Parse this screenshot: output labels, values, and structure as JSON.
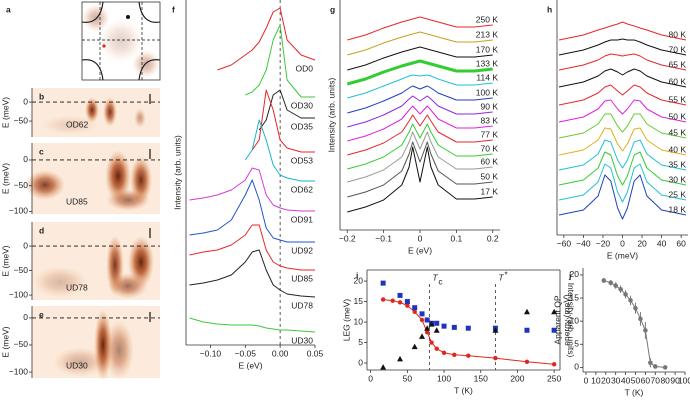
{
  "chart_data": [
    {
      "panel": "a",
      "type": "image"
    },
    {
      "panel": "b",
      "type": "image",
      "label": "OD62",
      "ylabel": "E (meV)",
      "ylim": [
        -92,
        37
      ],
      "yticks": [
        0,
        {
          "value": -50,
          "label": "−50"
        }
      ],
      "hline": 0
    },
    {
      "panel": "c",
      "type": "image",
      "label": "UD85",
      "ylabel": "E (meV)",
      "ylim": [
        -105,
        33
      ],
      "yticks": [
        0,
        {
          "value": -50,
          "label": "−50"
        },
        {
          "value": -100,
          "label": "−100"
        }
      ],
      "hline": 0
    },
    {
      "panel": "d",
      "type": "image",
      "label": "UD78",
      "ylabel": "E (meV)",
      "ylim": [
        -110,
        49
      ],
      "yticks": [
        0,
        {
          "value": -50,
          "label": "−50"
        },
        {
          "value": -100,
          "label": "−100"
        }
      ],
      "hline": 0
    },
    {
      "panel": "e",
      "type": "image",
      "label": "UD30",
      "ylabel": "E (meV)",
      "ylim": [
        -111,
        22
      ],
      "yticks": [
        0,
        {
          "value": -50,
          "label": "−50"
        },
        {
          "value": -100,
          "label": "−100"
        }
      ],
      "hline": 0
    },
    {
      "panel": "f",
      "type": "line",
      "xlabel": "E (eV)",
      "ylabel": "Intensity (arb. units)",
      "xlim": [
        -0.135,
        0.05
      ],
      "xticks": [
        {
          "value": -0.1,
          "label": "−0.10"
        },
        {
          "value": -0.05,
          "label": "−0.05"
        },
        {
          "value": 0,
          "label": "0.00"
        },
        0.05
      ],
      "ylim": [
        0,
        34.5
      ],
      "vline": 0,
      "x": [
        -0.13,
        -0.11,
        -0.09,
        -0.07,
        -0.05,
        -0.04,
        -0.03,
        -0.02,
        -0.01,
        0,
        0.01,
        0.03,
        0.05
      ],
      "series": [
        {
          "name": "OD0",
          "color": "#e8262a",
          "values": [
            null,
            null,
            27.5,
            28,
            29,
            29.5,
            30.3,
            31.7,
            33.3,
            33.7,
            30.5,
            29,
            28.5
          ]
        },
        {
          "name": "OD30",
          "color": "#3ec93e",
          "values": [
            null,
            null,
            null,
            null,
            25,
            25.3,
            26,
            27.5,
            30.5,
            32,
            26.5,
            24.8,
            24.8
          ]
        },
        {
          "name": "OD35",
          "color": "#222222",
          "values": [
            null,
            null,
            null,
            null,
            null,
            null,
            21.5,
            22.5,
            25,
            25.5,
            23.5,
            22.7,
            22.7
          ]
        },
        {
          "name": "OD53",
          "color": "#e8262a",
          "values": [
            null,
            null,
            null,
            null,
            null,
            19.5,
            20.5,
            25.5,
            23.5,
            20.5,
            19.7,
            19.3,
            19.3
          ]
        },
        {
          "name": "OD62",
          "color": "#19b3c9",
          "values": [
            null,
            null,
            null,
            null,
            18.5,
            19.5,
            22.5,
            20.5,
            18,
            17,
            16.7,
            16.4,
            16.4
          ]
        },
        {
          "name": "OD91",
          "color": "#d43cd4",
          "values": [
            14.5,
            14.7,
            15,
            15.5,
            16.5,
            17.7,
            17.5,
            15,
            14,
            13.7,
            13.5,
            13.4,
            13.4
          ]
        },
        {
          "name": "UD92",
          "color": "#2255cc",
          "values": [
            11,
            11.2,
            11.5,
            12.5,
            15,
            16.5,
            14.5,
            11.7,
            10.7,
            10.5,
            10.3,
            10.3,
            10.3
          ]
        },
        {
          "name": "UD85",
          "color": "#e8262a",
          "values": [
            9,
            9.3,
            9.5,
            10,
            11,
            12,
            12,
            9.5,
            8.3,
            7.9,
            7.7,
            7.5,
            7.5
          ]
        },
        {
          "name": "UD78",
          "color": "#222222",
          "values": [
            6,
            6.2,
            6.5,
            7,
            8.3,
            9.3,
            9.5,
            7.5,
            6,
            5.5,
            5.1,
            4.9,
            4.8
          ]
        },
        {
          "name": "UD30",
          "color": "#3ec93e",
          "values": [
            2.7,
            2.3,
            2.1,
            2,
            2,
            2,
            1.9,
            1.7,
            1.6,
            1.5,
            1.5,
            1.4,
            1.3
          ]
        }
      ]
    },
    {
      "panel": "g",
      "type": "line",
      "xlabel": "E (eV)",
      "ylabel": "Intensity (arb. units)",
      "xlim": [
        -0.22,
        0.22
      ],
      "xticks": [
        {
          "value": -0.2,
          "label": "−0.2"
        },
        {
          "value": -0.1,
          "label": "−0.1"
        },
        0,
        0.1,
        0.2
      ],
      "ylim": [
        0,
        23
      ],
      "x": [
        -0.2,
        -0.15,
        -0.1,
        -0.05,
        -0.03,
        -0.02,
        0,
        0.02,
        0.03,
        0.05,
        0.1,
        0.15,
        0.2
      ],
      "series": [
        {
          "name": "250 K",
          "color": "#e8262a",
          "values": [
            19,
            19.5,
            20.2,
            20.8,
            21,
            21.1,
            21.3,
            21.1,
            21,
            20.8,
            20.3,
            20.3,
            20.5
          ]
        },
        {
          "name": "213 K",
          "color": "#c8a020",
          "values": [
            17.5,
            18,
            18.7,
            19.3,
            19.5,
            19.6,
            19.8,
            19.6,
            19.5,
            19.3,
            18.8,
            18.8,
            19
          ]
        },
        {
          "name": "170 K",
          "color": "#111111",
          "values": [
            16,
            16.5,
            17.2,
            17.8,
            18,
            18.1,
            18.3,
            18.1,
            18,
            17.8,
            17.3,
            17.3,
            17.5
          ]
        },
        {
          "name": "133 K",
          "color": "#33cc33",
          "width": 3,
          "values": [
            14.6,
            15.1,
            15.8,
            16.4,
            16.6,
            16.7,
            16.9,
            16.7,
            16.6,
            16.4,
            15.9,
            15.9,
            16.1
          ]
        },
        {
          "name": "114 K",
          "color": "#22c0d0",
          "values": [
            13.2,
            13.7,
            14.4,
            15.1,
            15.4,
            15.5,
            15.4,
            15.5,
            15.4,
            15.1,
            14.5,
            14.5,
            14.7
          ]
        },
        {
          "name": "100 K",
          "color": "#1f3fbf",
          "values": [
            11.7,
            12.2,
            12.9,
            13.7,
            14.2,
            14.4,
            14.1,
            14.4,
            14.2,
            13.7,
            13,
            13,
            13.2
          ]
        },
        {
          "name": "90 K",
          "color": "#8a2be2",
          "values": [
            10.3,
            10.8,
            11.5,
            12.4,
            13.1,
            13.4,
            12.9,
            13.4,
            13.1,
            12.4,
            11.6,
            11.6,
            11.8
          ]
        },
        {
          "name": "83 K",
          "color": "#e020e0",
          "values": [
            8.9,
            9.4,
            10.1,
            11.1,
            12,
            12.4,
            11.6,
            12.4,
            12,
            11.1,
            10.2,
            10.2,
            10.4
          ]
        },
        {
          "name": "77 K",
          "color": "#e8262a",
          "values": [
            7.5,
            8,
            8.7,
            9.8,
            10.9,
            11.5,
            10.4,
            11.5,
            10.9,
            9.8,
            8.8,
            8.8,
            9
          ]
        },
        {
          "name": "70 K",
          "color": "#33cc33",
          "values": [
            6.1,
            6.6,
            7.3,
            8.5,
            9.8,
            10.6,
            9.2,
            10.6,
            9.8,
            8.5,
            7.4,
            7.4,
            7.6
          ]
        },
        {
          "name": "60 K",
          "color": "#999999",
          "values": [
            4.8,
            5.3,
            6,
            7.3,
            8.8,
            9.8,
            8.1,
            9.8,
            8.8,
            7.3,
            6.1,
            6.1,
            6.3
          ]
        },
        {
          "name": "50 K",
          "color": "#555555",
          "values": [
            3.3,
            3.8,
            4.5,
            5.9,
            7.6,
            8.8,
            6.8,
            8.8,
            7.6,
            5.9,
            4.6,
            4.6,
            4.8
          ]
        },
        {
          "name": "17 K",
          "color": "#111111",
          "values": [
            1.8,
            2.3,
            3,
            4.5,
            6.3,
            8.3,
            4.8,
            8.3,
            6.3,
            4.5,
            3.1,
            3.1,
            3.3
          ]
        }
      ]
    },
    {
      "panel": "h",
      "type": "line",
      "xlabel": "E (meV)",
      "xlim": [
        -67,
        67
      ],
      "xticks": [
        {
          "value": -60,
          "label": "−60"
        },
        {
          "value": -40,
          "label": "−40"
        },
        {
          "value": -20,
          "label": "−20"
        },
        0,
        20,
        40,
        60
      ],
      "ylim": [
        0,
        23.5
      ],
      "x": [
        -65,
        -40,
        -25,
        -18,
        -12,
        -5,
        0,
        5,
        12,
        18,
        25,
        40,
        65
      ],
      "series": [
        {
          "name": "80 K",
          "color": "#e8262a",
          "values": [
            19.5,
            20,
            20.5,
            20.7,
            20.9,
            21.1,
            21.3,
            21.1,
            20.9,
            20.7,
            20.5,
            20,
            19.5
          ]
        },
        {
          "name": "70 K",
          "color": "#111111",
          "values": [
            18,
            18.5,
            19,
            19.3,
            19.5,
            19.5,
            19.6,
            19.5,
            19.5,
            19.3,
            19,
            18.5,
            18
          ]
        },
        {
          "name": "65 K",
          "color": "#e8262a",
          "values": [
            16.5,
            17,
            17.5,
            17.9,
            18.1,
            18,
            17.9,
            18,
            18.1,
            17.9,
            17.5,
            17,
            16.5
          ]
        },
        {
          "name": "60 K",
          "color": "#111111",
          "values": [
            14.8,
            15.3,
            15.9,
            16.4,
            16.6,
            16.3,
            16,
            16.3,
            16.6,
            16.4,
            15.9,
            15.3,
            14.8
          ]
        },
        {
          "name": "55 K",
          "color": "#e8262a",
          "values": [
            13,
            13.5,
            14.2,
            14.8,
            15,
            14.4,
            14,
            14.4,
            15,
            14.8,
            14.2,
            13.5,
            13
          ]
        },
        {
          "name": "50 K",
          "color": "#e020e0",
          "values": [
            11.3,
            11.8,
            12.6,
            13.4,
            13.5,
            12.6,
            12.1,
            12.6,
            13.5,
            13.4,
            12.6,
            11.8,
            11.3
          ]
        },
        {
          "name": "45 K",
          "color": "#66cc33",
          "values": [
            9.7,
            10.2,
            11.1,
            12.1,
            12.1,
            10.9,
            10.3,
            10.9,
            12.1,
            12.1,
            11.1,
            10.2,
            9.7
          ]
        },
        {
          "name": "40 K",
          "color": "#e0b020",
          "values": [
            8,
            8.5,
            9.5,
            10.7,
            10.6,
            9.1,
            8.4,
            9.1,
            10.6,
            10.7,
            9.5,
            8.5,
            8
          ]
        },
        {
          "name": "35 K",
          "color": "#22c0d0",
          "values": [
            6.5,
            7,
            8.1,
            9.5,
            9.3,
            7.5,
            6.7,
            7.5,
            9.3,
            9.5,
            8.1,
            7,
            6.5
          ]
        },
        {
          "name": "30 K",
          "color": "#33cc33",
          "values": [
            5,
            5.5,
            6.7,
            8.3,
            8,
            5.9,
            5,
            5.9,
            8,
            8.3,
            6.7,
            5.5,
            5
          ]
        },
        {
          "name": "25 K",
          "color": "#22c0d0",
          "values": [
            3.5,
            4,
            5.3,
            7.1,
            6.7,
            4.3,
            3.3,
            4.3,
            6.7,
            7.1,
            5.3,
            4,
            3.5
          ]
        },
        {
          "name": "18 K",
          "color": "#1f3fbf",
          "values": [
            2,
            2.5,
            3.9,
            6,
            5.4,
            2.7,
            1.6,
            2.7,
            5.4,
            6,
            3.9,
            2.5,
            2
          ]
        }
      ]
    },
    {
      "panel": "i",
      "type": "scatter",
      "xlabel": "T (K)",
      "ylabel": "LEG (meV)",
      "y2label": "Intensity (arb. units)",
      "xlim": [
        -5,
        258
      ],
      "xticks": [
        0,
        50,
        100,
        150,
        200,
        250
      ],
      "ylim": [
        -1.7,
        22.7
      ],
      "yticks": [
        0,
        5,
        10,
        15,
        20
      ],
      "y2lim": [
        -1.7,
        22.7
      ],
      "annotations": [
        {
          "text": "T",
          "sub": "c",
          "x": 80
        },
        {
          "text": "T",
          "sup": "*",
          "x": 170
        }
      ],
      "series": [
        {
          "color": "#e0271b",
          "marker": "circle",
          "line": true,
          "x": [
            17,
            30,
            40,
            50,
            60,
            70,
            77,
            83,
            90,
            100,
            114,
            133,
            170,
            213,
            250
          ],
          "values": [
            15.5,
            15.2,
            14.8,
            14,
            12.5,
            10.5,
            7.5,
            5,
            3.5,
            2.5,
            2,
            1.8,
            1.2,
            0.3,
            -0.3
          ]
        },
        {
          "color": "#2233bb",
          "marker": "square",
          "axis": "y2",
          "x": [
            17,
            40,
            50,
            60,
            70,
            77,
            83,
            90,
            100,
            114,
            133,
            170,
            213,
            250
          ],
          "values": [
            19.5,
            16.5,
            15,
            13.5,
            12,
            10.5,
            9.7,
            9.7,
            9,
            8.7,
            8.5,
            8.5,
            8,
            8
          ]
        },
        {
          "color": "#111111",
          "marker": "triangle",
          "axis": "y2",
          "x": [
            17,
            40,
            60,
            70,
            77,
            83,
            90,
            170,
            213,
            250
          ],
          "values": [
            -1,
            1,
            4,
            6.5,
            8.5,
            9.5,
            8,
            8,
            12.5,
            12.5
          ]
        }
      ]
    },
    {
      "panel": "j",
      "type": "errorbar",
      "xlabel": "T (K)",
      "ylabel": [
        "Apparent QP",
        "energy (meV)"
      ],
      "xlim": [
        -3,
        100
      ],
      "xticks": [
        0,
        10,
        20,
        30,
        40,
        50,
        60,
        70,
        80,
        90,
        100
      ],
      "ylim": [
        -1,
        21.5
      ],
      "yticks": [
        0,
        5,
        10,
        15,
        20
      ],
      "color": "#777777",
      "x": [
        18,
        25,
        30,
        35,
        40,
        45,
        50,
        55,
        60,
        65,
        70,
        80
      ],
      "values": [
        18.8,
        18.3,
        17.7,
        16.9,
        15.8,
        14.5,
        12.8,
        10.5,
        8,
        1,
        0.2,
        0
      ],
      "errors": [
        0.5,
        0.6,
        0.7,
        0.8,
        0.9,
        1,
        1.2,
        1.5,
        1.8,
        1,
        0.3,
        0.3
      ]
    }
  ]
}
